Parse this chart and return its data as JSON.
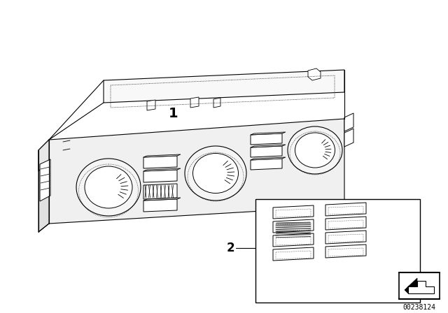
{
  "background_color": "#ffffff",
  "part_number": "00238124",
  "label1": "1",
  "label2": "2",
  "fig_width": 6.4,
  "fig_height": 4.48,
  "dpi": 100,
  "line_color": "#000000",
  "line_width": 0.8
}
